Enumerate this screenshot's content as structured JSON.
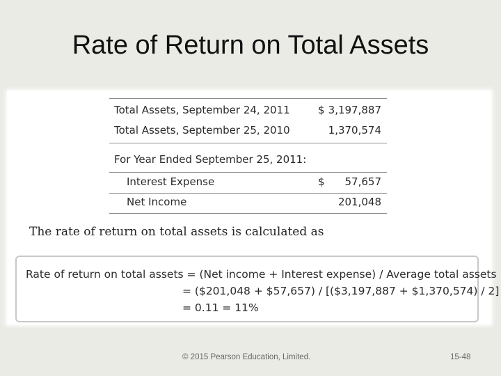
{
  "slide": {
    "title": "Rate of Return on Total Assets"
  },
  "assets_table": {
    "rows": [
      {
        "label": "Total Assets, September 24, 2011",
        "currency": "$",
        "value": "3,197,887"
      },
      {
        "label": "Total Assets, September 25, 2010",
        "currency": "",
        "value": "1,370,574"
      },
      {
        "label": "For Year Ended September 25, 2011:",
        "currency": "",
        "value": ""
      },
      {
        "label": "Interest Expense",
        "currency": "$",
        "value": "57,657"
      },
      {
        "label": "Net Income",
        "currency": "",
        "value": "201,048"
      }
    ]
  },
  "intro_text": "The rate of return on total assets is calculated as",
  "calculation": {
    "line1": "Rate of return on total assets = (Net income + Interest expense) / Average total assets",
    "line2": "= ($201,048 + $57,657) / [($3,197,887 + $1,370,574) / 2]",
    "line3": "= 0.11 = 11%"
  },
  "footer": {
    "copyright": "© 2015 Pearson Education, Limited.",
    "page_number": "15-48"
  }
}
